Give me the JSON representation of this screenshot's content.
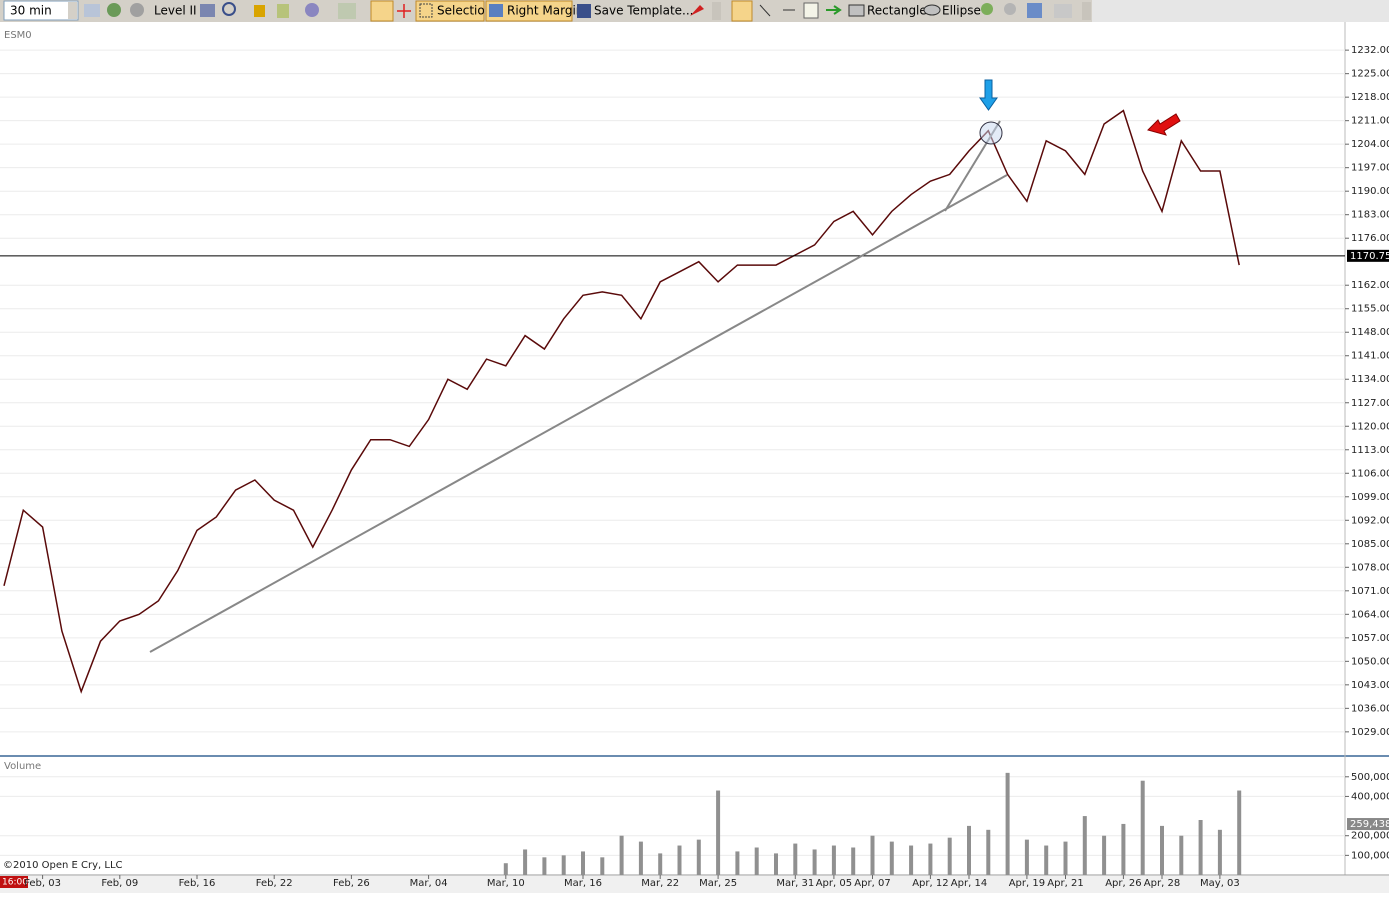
{
  "toolbar": {
    "interval": "30 min",
    "level2": "Level II",
    "selection": "Selection",
    "right_margin": "Right Margin",
    "save_template": "Save Template...",
    "rectangle": "Rectangle",
    "ellipse": "Ellipse"
  },
  "chart": {
    "type": "line",
    "symbol": "ESM0",
    "copyright": "©2010 Open E Cry, LLC",
    "time": "16:00",
    "categories": [
      null,
      null,
      "Feb, 03",
      null,
      null,
      null,
      "Feb, 09",
      null,
      null,
      null,
      "Feb, 16",
      null,
      null,
      null,
      "Feb, 22",
      null,
      null,
      null,
      "Feb, 26",
      null,
      null,
      null,
      "Mar, 04",
      null,
      null,
      null,
      "Mar, 10",
      null,
      null,
      null,
      "Mar, 16",
      null,
      null,
      null,
      "Mar, 22",
      null,
      null,
      "Mar, 25",
      null,
      null,
      null,
      "Mar, 31",
      null,
      "Apr, 05",
      null,
      "Apr, 07",
      null,
      null,
      "Apr, 12",
      null,
      "Apr, 14",
      null,
      null,
      "Apr, 19",
      null,
      "Apr, 21",
      null,
      null,
      "Apr, 26",
      null,
      "Apr, 28",
      null,
      null,
      "May, 03",
      null
    ],
    "price": {
      "color": "#5a0a0a",
      "values": [
        1072.5,
        1095,
        1090,
        1059,
        1041,
        1056,
        1062,
        1064,
        1068,
        1077,
        1089,
        1093,
        1101,
        1104,
        1098,
        1095,
        1084,
        1095,
        1107,
        1116,
        1116,
        1114,
        1122,
        1134,
        1131,
        1140,
        1138,
        1147,
        1143,
        1152,
        1159,
        1160,
        1159,
        1152,
        1163,
        1166,
        1169,
        1163,
        1168,
        1168,
        1168,
        1171,
        1174,
        1181,
        1184,
        1177,
        1184,
        1189,
        1193,
        1195,
        1202,
        1208,
        1195,
        1187,
        1205,
        1202,
        1195,
        1210,
        1214,
        1196,
        1184,
        1205,
        1196,
        1196,
        1168
      ],
      "last": {
        "value": 1170.75,
        "label": "1170.75"
      },
      "ylim": [
        1023,
        1238
      ],
      "yticks": [
        {
          "value": 1232,
          "label": "1232.00"
        },
        {
          "value": 1225,
          "label": "1225.00"
        },
        {
          "value": 1218,
          "label": "1218.00"
        },
        {
          "value": 1211,
          "label": "1211.00"
        },
        {
          "value": 1204,
          "label": "1204.00"
        },
        {
          "value": 1197,
          "label": "1197.00"
        },
        {
          "value": 1190,
          "label": "1190.00"
        },
        {
          "value": 1183,
          "label": "1183.00"
        },
        {
          "value": 1176,
          "label": "1176.00"
        },
        {
          "value": 1162,
          "label": "1162.00"
        },
        {
          "value": 1155,
          "label": "1155.00"
        },
        {
          "value": 1148,
          "label": "1148.00"
        },
        {
          "value": 1141,
          "label": "1141.00"
        },
        {
          "value": 1134,
          "label": "1134.00"
        },
        {
          "value": 1127,
          "label": "1127.00"
        },
        {
          "value": 1120,
          "label": "1120.00"
        },
        {
          "value": 1113,
          "label": "1113.00"
        },
        {
          "value": 1106,
          "label": "1106.00"
        },
        {
          "value": 1099,
          "label": "1099.00"
        },
        {
          "value": 1092,
          "label": "1092.00"
        },
        {
          "value": 1085,
          "label": "1085.00"
        },
        {
          "value": 1078,
          "label": "1078.00"
        },
        {
          "value": 1071,
          "label": "1071.00"
        },
        {
          "value": 1064,
          "label": "1064.00"
        },
        {
          "value": 1057,
          "label": "1057.00"
        },
        {
          "value": 1050,
          "label": "1050.00"
        },
        {
          "value": 1043,
          "label": "1043.00"
        },
        {
          "value": 1036,
          "label": "1036.00"
        },
        {
          "value": 1029,
          "label": "1029.00"
        }
      ]
    },
    "volume": {
      "name": "Volume",
      "color": "#909090",
      "values": [
        null,
        null,
        null,
        null,
        null,
        null,
        null,
        null,
        null,
        null,
        null,
        null,
        null,
        null,
        null,
        null,
        null,
        null,
        null,
        null,
        null,
        null,
        null,
        null,
        null,
        null,
        60000,
        130000,
        90000,
        100000,
        120000,
        90000,
        200000,
        170000,
        110000,
        150000,
        180000,
        430000,
        120000,
        140000,
        110000,
        160000,
        130000,
        150000,
        140000,
        200000,
        170000,
        150000,
        160000,
        190000,
        250000,
        230000,
        520000,
        180000,
        150000,
        170000,
        300000,
        200000,
        260000,
        480000,
        250000,
        200000,
        280000,
        230000,
        430000
      ],
      "last": {
        "value": 259438,
        "label": "259,438"
      },
      "ylim": [
        0,
        560000
      ],
      "yticks": [
        {
          "value": 100000,
          "label": "100,000"
        },
        {
          "value": 200000,
          "label": "200,000"
        },
        {
          "value": 400000,
          "label": "400,000"
        },
        {
          "value": 500000,
          "label": "500,000"
        }
      ]
    }
  }
}
